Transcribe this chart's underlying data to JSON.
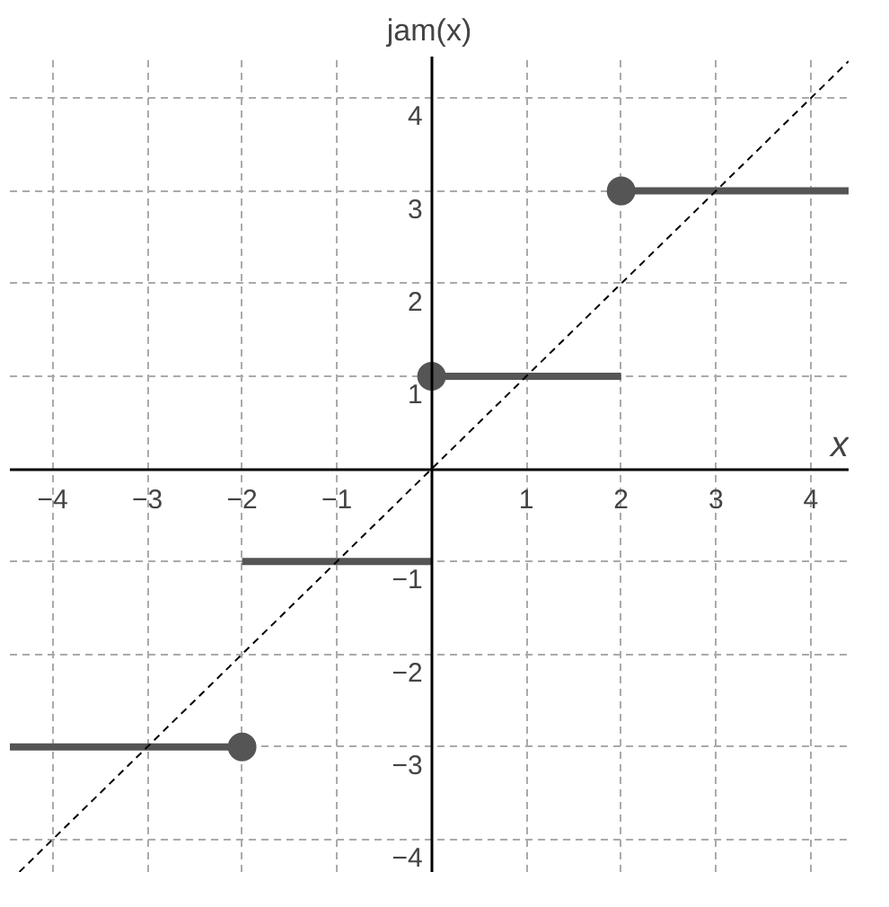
{
  "chart_data": {
    "type": "line",
    "title": "jam(x)",
    "xlabel": "x",
    "xlim": [
      -4.45,
      4.4
    ],
    "ylim": [
      -4.35,
      4.45
    ],
    "xticks": [
      {
        "value": -4,
        "label": "−4"
      },
      {
        "value": -3,
        "label": "−3"
      },
      {
        "value": -2,
        "label": "−2"
      },
      {
        "value": -1,
        "label": "−1"
      },
      1,
      2,
      3,
      4
    ],
    "yticks": [
      {
        "value": -4,
        "label": "−4"
      },
      {
        "value": -3,
        "label": "−3"
      },
      {
        "value": -2,
        "label": "−2"
      },
      {
        "value": -1,
        "label": "−1"
      },
      1,
      2,
      3,
      4
    ],
    "grid": true,
    "series": [
      {
        "x": [
          -4.45,
          -2
        ],
        "values": [
          -3,
          -3
        ],
        "color": "#555555",
        "line_style": "solid"
      },
      {
        "x": [
          -2,
          0
        ],
        "values": [
          -1,
          -1
        ],
        "color": "#555555",
        "line_style": "solid"
      },
      {
        "x": [
          0,
          2
        ],
        "values": [
          1,
          1
        ],
        "color": "#555555",
        "line_style": "solid"
      },
      {
        "x": [
          2,
          4.4
        ],
        "values": [
          3,
          3
        ],
        "color": "#555555",
        "line_style": "solid"
      },
      {
        "type": "scatter",
        "x": [
          -2,
          0,
          2
        ],
        "values": [
          -3,
          1,
          3
        ],
        "color": "#555555",
        "marker": "circle"
      },
      {
        "x": [
          -4.35,
          4.4
        ],
        "values": [
          -4.35,
          4.4
        ],
        "color": "#000000",
        "line_style": "dashed"
      }
    ]
  }
}
